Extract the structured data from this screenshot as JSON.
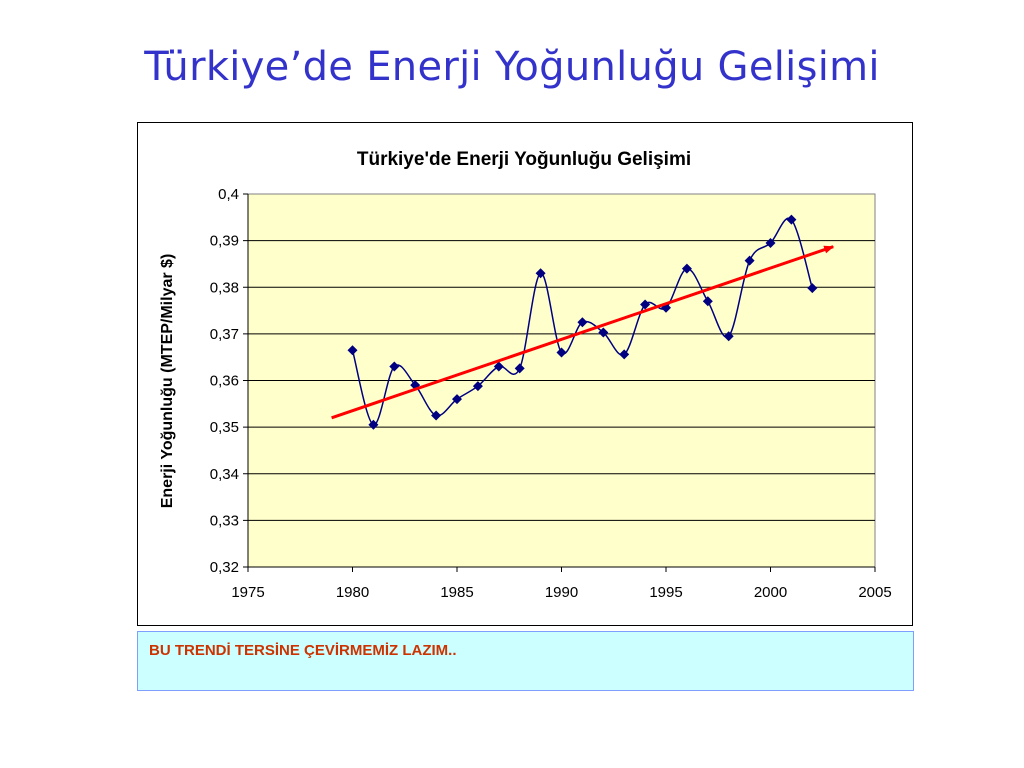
{
  "slide": {
    "title": "Türkiye’de Enerji Yoğunluğu Gelişimi"
  },
  "note": {
    "text": "BU TRENDİ TERSİNE ÇEVİRMEMİZ LAZIM.."
  },
  "chart_data": {
    "type": "line",
    "title": "Türkiye'de Enerji Yoğunluğu Gelişimi",
    "xlabel": "",
    "ylabel": "Enerji Yoğunluğu (MTEP/Milyar $)",
    "xlim": [
      1975,
      2005
    ],
    "ylim": [
      0.32,
      0.4
    ],
    "x_ticks": [
      "1975",
      "1980",
      "1985",
      "1990",
      "1995",
      "2000",
      "2005"
    ],
    "y_ticks": [
      "0,4",
      "0,39",
      "0,38",
      "0,37",
      "0,36",
      "0,35",
      "0,34",
      "0,33",
      "0,32"
    ],
    "grid": "horizontal",
    "plot_background": "#ffffcc",
    "series": [
      {
        "color": "#000080",
        "marker": "diamond",
        "smooth": true,
        "x": [
          1980,
          1981,
          1982,
          1983,
          1984,
          1985,
          1986,
          1987,
          1988,
          1989,
          1990,
          1991,
          1992,
          1993,
          1994,
          1995,
          1996,
          1997,
          1998,
          1999,
          2000,
          2001,
          2002
        ],
        "y": [
          0.3665,
          0.3505,
          0.363,
          0.359,
          0.3525,
          0.356,
          0.3588,
          0.363,
          0.3626,
          0.383,
          0.366,
          0.3725,
          0.3703,
          0.3656,
          0.3763,
          0.3756,
          0.384,
          0.377,
          0.3695,
          0.3857,
          0.3895,
          0.3945,
          0.3798
        ]
      }
    ],
    "trend_arrow": {
      "color": "#ff0000",
      "x": [
        1979,
        2003
      ],
      "y": [
        0.352,
        0.3887
      ]
    }
  }
}
